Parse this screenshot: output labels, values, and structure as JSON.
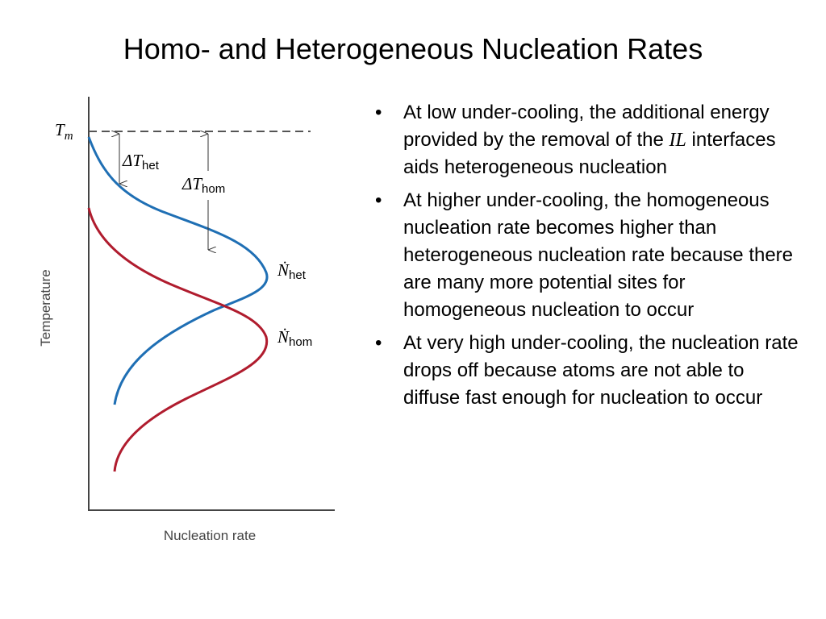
{
  "header": {
    "title": "Homo- and Heterogeneous Nucleation Rates"
  },
  "figure": {
    "tm": {
      "symbol": "T",
      "subscript": "m"
    },
    "delta_het": {
      "symbol": "ΔT",
      "subscript": "het"
    },
    "delta_hom": {
      "symbol": "ΔT",
      "subscript": "hom"
    },
    "n_het": {
      "symbol": "Ṅ",
      "subscript": "het"
    },
    "n_hom": {
      "symbol": "Ṅ",
      "subscript": "hom"
    },
    "y_label": "Temperature",
    "x_label": "Nucleation rate"
  },
  "bullets": [
    {
      "parts": [
        "At low under-cooling, the additional energy provided by the removal of the",
        "IL",
        "interfaces aids heterogeneous nucleation"
      ]
    },
    {
      "parts": [
        "At higher under-cooling, the homogeneous nucleation rate becomes higher than heterogeneous nucleation rate because there are many more potential sites for homogeneous nucleation to occur"
      ]
    },
    {
      "parts": [
        "At very high under-cooling, the nucleation rate drops off because atoms are not able to diffuse fast enough for nucleation to occur"
      ]
    }
  ]
}
